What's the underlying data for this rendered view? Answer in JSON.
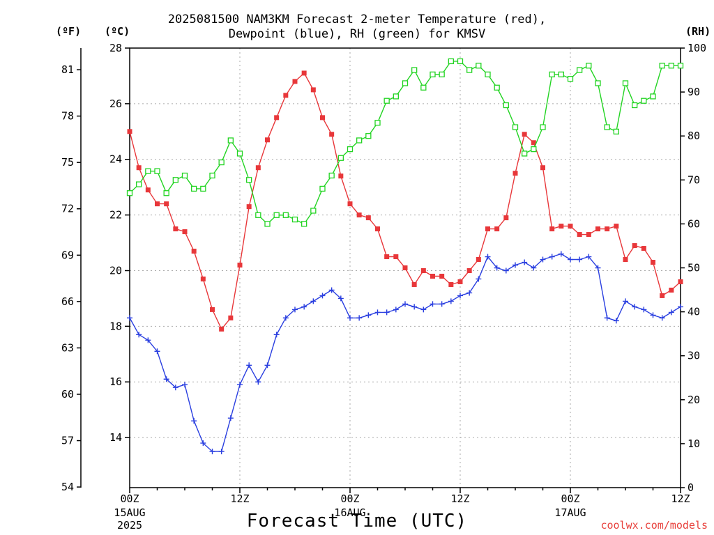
{
  "title": {
    "line1": "2025081500 NAM3KM Forecast 2-meter Temperature (red),",
    "line2": "Dewpoint (blue), RH (green) for KMSV"
  },
  "axis_units": {
    "fahrenheit": "(ºF)",
    "celsius": "(ºC)",
    "rh": "(RH)"
  },
  "xaxis_title": "Forecast Time (UTC)",
  "credit": "coolwx.com/models",
  "colors": {
    "temperature": "#e8373a",
    "dewpoint": "#2a3fe0",
    "rh": "#22d422",
    "grid": "#aaaaaa"
  },
  "chart_data": {
    "type": "line",
    "title": "2025081500 NAM3KM Forecast 2-meter Temperature (red), Dewpoint (blue), RH (green) for KMSV",
    "xlabel": "Forecast Time (UTC)",
    "x_hours": [
      0,
      1,
      2,
      3,
      4,
      5,
      6,
      7,
      8,
      9,
      10,
      11,
      12,
      13,
      14,
      15,
      16,
      17,
      18,
      19,
      20,
      21,
      22,
      23,
      24,
      25,
      26,
      27,
      28,
      29,
      30,
      31,
      32,
      33,
      34,
      35,
      36,
      37,
      38,
      39,
      40,
      41,
      42,
      43,
      44,
      45,
      46,
      47,
      48,
      49,
      50,
      51,
      52,
      53,
      54,
      55,
      56,
      57,
      58,
      59,
      60
    ],
    "x_ticks": [
      {
        "hour": 0,
        "label": "00Z",
        "sub1": "15AUG",
        "sub2": "2025"
      },
      {
        "hour": 12,
        "label": "12Z",
        "sub1": "",
        "sub2": ""
      },
      {
        "hour": 24,
        "label": "00Z",
        "sub1": "16AUG",
        "sub2": ""
      },
      {
        "hour": 36,
        "label": "12Z",
        "sub1": "",
        "sub2": ""
      },
      {
        "hour": 48,
        "label": "00Z",
        "sub1": "17AUG",
        "sub2": ""
      },
      {
        "hour": 60,
        "label": "12Z",
        "sub1": "",
        "sub2": ""
      }
    ],
    "y_left_c": {
      "label": "(ºC)",
      "range": [
        12.2,
        28
      ],
      "ticks": [
        14,
        16,
        18,
        20,
        22,
        24,
        26,
        28
      ]
    },
    "y_left_f": {
      "label": "(ºF)",
      "ticks": [
        54,
        57,
        60,
        63,
        66,
        69,
        72,
        75,
        78,
        81
      ]
    },
    "y_right_rh": {
      "label": "(RH)",
      "range": [
        0,
        100
      ],
      "ticks": [
        0,
        10,
        20,
        30,
        40,
        50,
        60,
        70,
        80,
        90,
        100
      ]
    },
    "grid": true,
    "series": [
      {
        "name": "Temperature",
        "unit": "C",
        "axis": "left",
        "marker": "filled-square",
        "color": "#e8373a",
        "values": [
          25.0,
          23.7,
          22.9,
          22.4,
          22.4,
          21.5,
          21.4,
          20.7,
          19.7,
          18.6,
          17.9,
          18.3,
          20.2,
          22.3,
          23.7,
          24.7,
          25.5,
          26.3,
          26.8,
          27.1,
          26.5,
          25.5,
          24.9,
          23.4,
          22.4,
          22.0,
          21.9,
          21.5,
          20.5,
          20.5,
          20.1,
          19.5,
          20.0,
          19.8,
          19.8,
          19.5,
          19.6,
          20.0,
          20.4,
          21.5,
          21.5,
          21.9,
          23.5,
          24.9,
          24.6,
          23.7,
          21.5,
          21.6,
          21.6,
          21.3,
          21.3,
          21.5,
          21.5,
          21.6,
          20.4,
          20.9,
          20.8,
          20.3,
          19.1,
          19.3,
          19.6
        ]
      },
      {
        "name": "Dewpoint",
        "unit": "C",
        "axis": "left",
        "marker": "plus",
        "color": "#2a3fe0",
        "values": [
          18.3,
          17.7,
          17.5,
          17.1,
          16.1,
          15.8,
          15.9,
          14.6,
          13.8,
          13.5,
          13.5,
          14.7,
          15.9,
          16.6,
          16.0,
          16.6,
          17.7,
          18.3,
          18.6,
          18.7,
          18.9,
          19.1,
          19.3,
          19.0,
          18.3,
          18.3,
          18.4,
          18.5,
          18.5,
          18.6,
          18.8,
          18.7,
          18.6,
          18.8,
          18.8,
          18.9,
          19.1,
          19.2,
          19.7,
          20.5,
          20.1,
          20.0,
          20.2,
          20.3,
          20.1,
          20.4,
          20.5,
          20.6,
          20.4,
          20.4,
          20.5,
          20.1,
          18.3,
          18.2,
          18.9,
          18.7,
          18.6,
          18.4,
          18.3,
          18.5,
          18.7
        ]
      },
      {
        "name": "RH",
        "unit": "%",
        "axis": "right",
        "marker": "open-square",
        "color": "#22d422",
        "values": [
          67,
          69,
          72,
          72,
          67,
          70,
          71,
          68,
          68,
          71,
          74,
          79,
          76,
          70,
          62,
          60,
          62,
          62,
          61,
          60,
          63,
          68,
          71,
          75,
          77,
          79,
          80,
          83,
          88,
          89,
          92,
          95,
          91,
          94,
          94,
          97,
          97,
          95,
          96,
          94,
          91,
          87,
          82,
          76,
          77,
          82,
          94,
          94,
          93,
          95,
          96,
          92,
          82,
          81,
          92,
          87,
          88,
          89,
          96,
          96,
          96
        ]
      }
    ]
  }
}
